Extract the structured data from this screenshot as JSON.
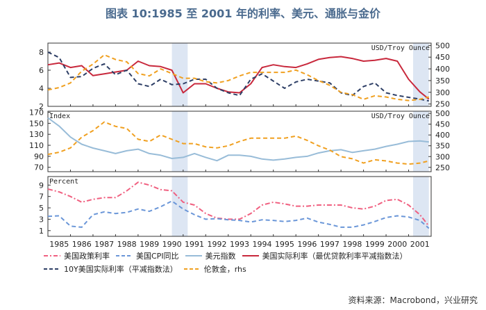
{
  "title": "图表 10:1985 至 2001 年的利率、美元、通胀与金价",
  "source": "资料来源：Macrobond，兴业研究",
  "chart_data": [
    {
      "type": "line",
      "panel": "top",
      "left_axis": {
        "label": "",
        "range": [
          2,
          9
        ],
        "ticks": [
          2,
          4,
          6,
          8
        ]
      },
      "right_axis": {
        "label": "USD/Troy Ounce",
        "range": [
          240,
          510
        ],
        "ticks": [
          250,
          300,
          350,
          400,
          450,
          500
        ]
      },
      "recession_bands": [
        [
          1990.5,
          1991.2
        ],
        [
          2001.2,
          2001.9
        ]
      ],
      "series": [
        {
          "name": "美国实际利率（最优贷款利率平减指数法）",
          "axis": "left",
          "color": "#c8283c",
          "dash": "solid",
          "x": [
            1985,
            1985.5,
            1986,
            1986.5,
            1987,
            1987.5,
            1988,
            1988.5,
            1989,
            1989.5,
            1990,
            1990.5,
            1991,
            1991.5,
            1992,
            1992.5,
            1993,
            1993.5,
            1994,
            1994.5,
            1995,
            1995.5,
            1996,
            1996.5,
            1997,
            1997.5,
            1998,
            1998.5,
            1999,
            1999.5,
            2000,
            2000.5,
            2001,
            2001.5,
            2001.9
          ],
          "y": [
            6.6,
            6.8,
            6.3,
            6.5,
            5.4,
            5.6,
            5.8,
            6.0,
            7.0,
            6.5,
            6.4,
            6.0,
            3.5,
            4.5,
            4.5,
            4.0,
            3.6,
            3.5,
            4.5,
            6.3,
            6.6,
            6.4,
            6.3,
            6.7,
            7.2,
            7.4,
            7.5,
            7.3,
            7.0,
            7.1,
            7.3,
            7.0,
            5.0,
            3.6,
            2.8
          ]
        },
        {
          "name": "10Y美国实际利率（平减指数法）",
          "axis": "left",
          "color": "#2e3f66",
          "dash": "dash",
          "x": [
            1985,
            1985.5,
            1986,
            1986.5,
            1987,
            1987.5,
            1988,
            1988.5,
            1989,
            1989.5,
            1990,
            1990.5,
            1991,
            1991.5,
            1992,
            1992.5,
            1993,
            1993.5,
            1994,
            1994.5,
            1995,
            1995.5,
            1996,
            1996.5,
            1997,
            1997.5,
            1998,
            1998.5,
            1999,
            1999.5,
            2000,
            2000.5,
            2001,
            2001.5,
            2001.9
          ],
          "y": [
            8.0,
            7.4,
            5.2,
            5.3,
            6.2,
            6.7,
            5.5,
            6.0,
            4.5,
            4.2,
            5.0,
            4.4,
            4.5,
            5.0,
            5.0,
            4.0,
            3.5,
            3.2,
            5.0,
            5.6,
            4.8,
            4.0,
            4.7,
            5.0,
            4.8,
            4.6,
            3.5,
            3.2,
            4.2,
            4.6,
            3.5,
            3.2,
            3.0,
            2.8,
            2.6
          ]
        },
        {
          "name": "伦敦金, rhs",
          "axis": "right",
          "color": "#f0a020",
          "dash": "dash",
          "x": [
            1985,
            1985.5,
            1986,
            1986.5,
            1987,
            1987.5,
            1988,
            1988.5,
            1989,
            1989.5,
            1990,
            1990.5,
            1991,
            1991.5,
            1992,
            1992.5,
            1993,
            1993.5,
            1994,
            1994.5,
            1995,
            1995.5,
            1996,
            1996.5,
            1997,
            1997.5,
            1998,
            1998.5,
            1999,
            1999.5,
            2000,
            2000.5,
            2001,
            2001.5,
            2001.9
          ],
          "y": [
            310,
            320,
            340,
            390,
            420,
            460,
            440,
            430,
            380,
            370,
            400,
            380,
            360,
            360,
            345,
            340,
            350,
            370,
            385,
            385,
            385,
            385,
            395,
            375,
            350,
            330,
            300,
            290,
            270,
            285,
            280,
            270,
            265,
            270,
            280
          ]
        }
      ]
    },
    {
      "type": "line",
      "panel": "middle",
      "left_axis": {
        "label": "Index",
        "range": [
          62,
          172
        ],
        "ticks": [
          70,
          90,
          110,
          130,
          150,
          170
        ]
      },
      "right_axis": {
        "label": "USD/Troy Ounce",
        "range": [
          230,
          510
        ],
        "ticks": [
          250,
          300,
          350,
          400,
          450,
          500
        ]
      },
      "recession_bands": [
        [
          1990.5,
          1991.2
        ],
        [
          2001.2,
          2001.9
        ]
      ],
      "series": [
        {
          "name": "美元指数",
          "axis": "left",
          "color": "#98bcd8",
          "dash": "solid",
          "x": [
            1985,
            1985.5,
            1986,
            1986.5,
            1987,
            1987.5,
            1988,
            1988.5,
            1989,
            1989.5,
            1990,
            1990.5,
            1991,
            1991.5,
            1992,
            1992.5,
            1993,
            1993.5,
            1994,
            1994.5,
            1995,
            1995.5,
            1996,
            1996.5,
            1997,
            1997.5,
            1998,
            1998.5,
            1999,
            1999.5,
            2000,
            2000.5,
            2001,
            2001.5,
            2001.9
          ],
          "y": [
            160,
            145,
            125,
            112,
            105,
            100,
            95,
            100,
            103,
            95,
            92,
            86,
            88,
            95,
            88,
            82,
            92,
            92,
            90,
            85,
            83,
            85,
            88,
            90,
            96,
            100,
            102,
            97,
            100,
            103,
            108,
            112,
            117,
            118,
            116
          ]
        },
        {
          "name": "伦敦金, rhs",
          "axis": "right",
          "color": "#f0a020",
          "dash": "dash",
          "x": [
            1985,
            1985.5,
            1986,
            1986.5,
            1987,
            1987.5,
            1988,
            1988.5,
            1989,
            1989.5,
            1990,
            1990.5,
            1991,
            1991.5,
            1992,
            1992.5,
            1993,
            1993.5,
            1994,
            1994.5,
            1995,
            1995.5,
            1996,
            1996.5,
            1997,
            1997.5,
            1998,
            1998.5,
            1999,
            1999.5,
            2000,
            2000.5,
            2001,
            2001.5,
            2001.9
          ],
          "y": [
            310,
            320,
            340,
            390,
            420,
            460,
            440,
            430,
            380,
            370,
            400,
            380,
            360,
            360,
            345,
            340,
            350,
            370,
            385,
            385,
            385,
            385,
            395,
            375,
            350,
            330,
            300,
            290,
            270,
            285,
            280,
            270,
            265,
            270,
            280
          ]
        }
      ]
    },
    {
      "type": "line",
      "panel": "bottom",
      "left_axis": {
        "label": "Percent",
        "range": [
          0,
          10.5
        ],
        "ticks": [
          1,
          3,
          5,
          7,
          9
        ]
      },
      "recession_bands": [
        [
          1990.5,
          1991.2
        ],
        [
          2001.2,
          2001.9
        ]
      ],
      "x_ticks": [
        "1985",
        "1986",
        "1987",
        "1988",
        "1989",
        "1990",
        "1991",
        "1992",
        "1993",
        "1994",
        "1995",
        "1996",
        "1997",
        "1998",
        "1999",
        "2000",
        "2001"
      ],
      "series": [
        {
          "name": "美国政策利率",
          "axis": "left",
          "color": "#f06080",
          "dash": "dashdot",
          "x": [
            1985,
            1985.5,
            1986,
            1986.5,
            1987,
            1987.5,
            1988,
            1988.5,
            1989,
            1989.5,
            1990,
            1990.5,
            1991,
            1991.5,
            1992,
            1992.5,
            1993,
            1993.5,
            1994,
            1994.5,
            1995,
            1995.5,
            1996,
            1996.5,
            1997,
            1997.5,
            1998,
            1998.5,
            1999,
            1999.5,
            2000,
            2000.5,
            2001,
            2001.5,
            2001.9
          ],
          "y": [
            8.3,
            7.8,
            7.0,
            6.0,
            6.5,
            6.8,
            6.8,
            8.0,
            9.5,
            9.0,
            8.2,
            8.0,
            6.0,
            5.5,
            4.0,
            3.2,
            3.0,
            3.0,
            4.0,
            5.5,
            6.0,
            5.7,
            5.3,
            5.3,
            5.5,
            5.5,
            5.5,
            5.0,
            4.8,
            5.3,
            6.3,
            6.5,
            5.5,
            3.8,
            1.8
          ]
        },
        {
          "name": "美国CPI同比",
          "axis": "left",
          "color": "#6a96d8",
          "dash": "dash",
          "x": [
            1985,
            1985.5,
            1986,
            1986.5,
            1987,
            1987.5,
            1988,
            1988.5,
            1989,
            1989.5,
            1990,
            1990.5,
            1991,
            1991.5,
            1992,
            1992.5,
            1993,
            1993.5,
            1994,
            1994.5,
            1995,
            1995.5,
            1996,
            1996.5,
            1997,
            1997.5,
            1998,
            1998.5,
            1999,
            1999.5,
            2000,
            2000.5,
            2001,
            2001.5,
            2001.9
          ],
          "y": [
            3.5,
            3.6,
            1.8,
            1.6,
            3.8,
            4.3,
            4.0,
            4.2,
            4.8,
            4.4,
            5.2,
            6.2,
            4.8,
            3.8,
            3.0,
            3.1,
            2.9,
            2.8,
            2.5,
            2.9,
            2.8,
            2.6,
            2.8,
            3.2,
            2.5,
            2.1,
            1.6,
            1.6,
            2.0,
            2.6,
            3.3,
            3.6,
            3.4,
            2.8,
            1.4
          ]
        }
      ]
    }
  ],
  "legend": {
    "items": [
      {
        "label": "美国政策利率",
        "color": "#f06080",
        "dash": "dashdot"
      },
      {
        "label": "美国CPI同比",
        "color": "#6a96d8",
        "dash": "dash"
      },
      {
        "label": "美元指数",
        "color": "#98bcd8",
        "dash": "solid"
      },
      {
        "label": "美国实际利率（最优贷款利率平减指数法）",
        "color": "#c8283c",
        "dash": "solid"
      },
      {
        "label": "10Y美国实际利率（平减指数法）",
        "color": "#2e3f66",
        "dash": "dash"
      },
      {
        "label": "伦敦金，rhs",
        "color": "#f0a020",
        "dash": "dash"
      }
    ]
  }
}
